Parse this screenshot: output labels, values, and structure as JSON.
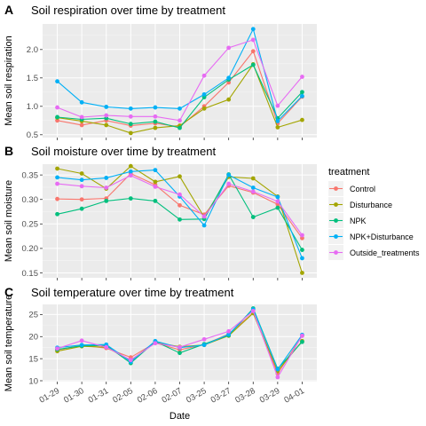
{
  "chart_data": [
    {
      "type": "line",
      "tag": "A",
      "title": "Soil respiration over time by treatment",
      "ylabel": "Mean soil respiration",
      "xlabel": "",
      "ylim": [
        0.45,
        2.45
      ],
      "yticks": [
        0.5,
        1.0,
        1.5,
        2.0
      ],
      "ytick_labels": [
        "0.5",
        "1.0",
        "1.5",
        "2.0"
      ],
      "categories": [
        "01-29",
        "01-30",
        "01-31",
        "02-05",
        "02-06",
        "02-07",
        "03-25",
        "03-27",
        "03-28",
        "03-29",
        "04-01"
      ],
      "series": [
        {
          "name": "Control",
          "values": [
            0.75,
            0.67,
            0.75,
            0.66,
            0.7,
            0.64,
            1.0,
            1.42,
            1.97,
            0.7,
            1.17
          ]
        },
        {
          "name": "Disturbance",
          "values": [
            0.8,
            0.74,
            0.67,
            0.53,
            0.62,
            0.66,
            0.96,
            1.12,
            1.74,
            0.63,
            0.76
          ]
        },
        {
          "name": "NPK",
          "values": [
            0.81,
            0.77,
            0.79,
            0.69,
            0.73,
            0.62,
            1.16,
            1.47,
            1.73,
            0.79,
            1.25
          ]
        },
        {
          "name": "NPK+Disturbance",
          "values": [
            1.44,
            1.07,
            0.99,
            0.96,
            0.98,
            0.96,
            1.21,
            1.5,
            2.36,
            0.74,
            1.18
          ]
        },
        {
          "name": "Outside_treatments",
          "values": [
            0.98,
            0.81,
            0.84,
            0.82,
            0.82,
            0.75,
            1.54,
            2.03,
            2.17,
            1.01,
            1.52
          ]
        }
      ]
    },
    {
      "type": "line",
      "tag": "B",
      "title": "Soil moisture over time by treatment",
      "ylabel": "Mean soil moisture",
      "xlabel": "",
      "ylim": [
        0.14,
        0.372
      ],
      "yticks": [
        0.15,
        0.2,
        0.25,
        0.3,
        0.35
      ],
      "ytick_labels": [
        "0.15",
        "0.20",
        "0.25",
        "0.30",
        "0.35"
      ],
      "categories": [
        "01-29",
        "01-30",
        "01-31",
        "02-05",
        "02-06",
        "02-07",
        "03-25",
        "03-27",
        "03-28",
        "03-29",
        "04-01"
      ],
      "series": [
        {
          "name": "Control",
          "values": [
            0.301,
            0.3,
            0.302,
            0.353,
            0.33,
            0.288,
            0.269,
            0.328,
            0.314,
            0.29,
            0.221
          ]
        },
        {
          "name": "Disturbance",
          "values": [
            0.363,
            0.353,
            0.322,
            0.368,
            0.336,
            0.347,
            0.264,
            0.346,
            0.343,
            0.306,
            0.15
          ]
        },
        {
          "name": "NPK",
          "values": [
            0.27,
            0.281,
            0.297,
            0.302,
            0.297,
            0.259,
            0.26,
            0.351,
            0.264,
            0.283,
            0.197
          ]
        },
        {
          "name": "NPK+Disturbance",
          "values": [
            0.345,
            0.34,
            0.344,
            0.357,
            0.36,
            0.306,
            0.247,
            0.35,
            0.324,
            0.305,
            0.18
          ]
        },
        {
          "name": "Outside_treatments",
          "values": [
            0.332,
            0.327,
            0.324,
            0.349,
            0.326,
            0.31,
            0.265,
            0.332,
            0.316,
            0.296,
            0.227
          ]
        }
      ]
    },
    {
      "type": "line",
      "tag": "C",
      "title": "Soil temperature over time by treatment",
      "ylabel": "Mean soil temperature",
      "xlabel": "Date",
      "ylim": [
        9.8,
        27.3
      ],
      "yticks": [
        10,
        15,
        20,
        25
      ],
      "ytick_labels": [
        "10",
        "15",
        "20",
        "25"
      ],
      "categories": [
        "01-29",
        "01-30",
        "01-31",
        "02-05",
        "02-06",
        "02-07",
        "03-25",
        "03-27",
        "03-28",
        "03-29",
        "04-01"
      ],
      "series": [
        {
          "name": "Control",
          "values": [
            17.0,
            18.0,
            17.4,
            15.3,
            18.6,
            17.0,
            18.2,
            20.6,
            25.4,
            11.6,
            20.2
          ]
        },
        {
          "name": "Disturbance",
          "values": [
            16.7,
            17.8,
            17.6,
            14.6,
            18.7,
            17.7,
            18.1,
            20.2,
            25.3,
            12.2,
            19.0
          ]
        },
        {
          "name": "NPK",
          "values": [
            17.1,
            17.9,
            18.0,
            14.0,
            18.9,
            16.3,
            18.3,
            20.3,
            26.4,
            12.7,
            18.8
          ]
        },
        {
          "name": "NPK+Disturbance",
          "values": [
            17.5,
            18.1,
            18.2,
            14.3,
            19.0,
            17.5,
            18.1,
            20.5,
            26.2,
            12.6,
            20.4
          ]
        },
        {
          "name": "Outside_treatments",
          "values": [
            17.3,
            19.1,
            17.6,
            14.7,
            18.5,
            17.6,
            19.4,
            21.2,
            25.8,
            10.8,
            20.2
          ]
        }
      ]
    }
  ],
  "legend": {
    "title": "treatment",
    "placement": "right",
    "items": [
      {
        "name": "Control",
        "color": "#F8766D"
      },
      {
        "name": "Disturbance",
        "color": "#A3A500"
      },
      {
        "name": "NPK",
        "color": "#00BF7D"
      },
      {
        "name": "NPK+Disturbance",
        "color": "#00B0F6"
      },
      {
        "name": "Outside_treatments",
        "color": "#E76BF3"
      }
    ]
  },
  "colors": {
    "Control": "#F8766D",
    "Disturbance": "#A3A500",
    "NPK": "#00BF7D",
    "NPK+Disturbance": "#00B0F6",
    "Outside_treatments": "#E76BF3"
  }
}
